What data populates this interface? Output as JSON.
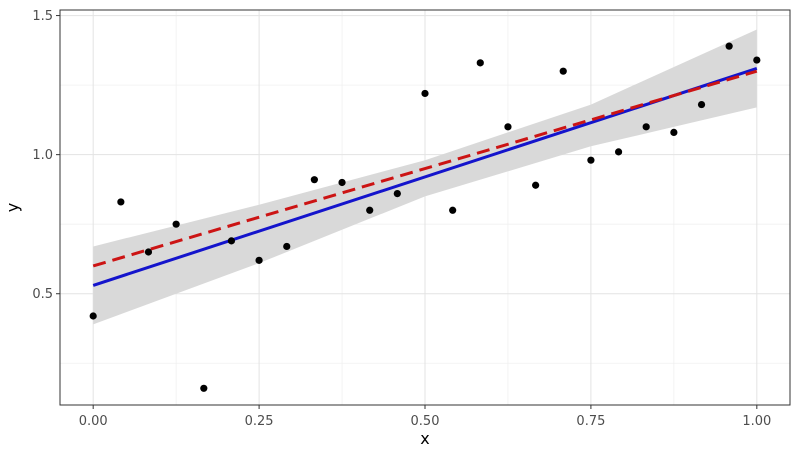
{
  "chart_data": {
    "type": "scatter",
    "title": "",
    "xlabel": "x",
    "ylabel": "y",
    "xlim": [
      -0.05,
      1.05
    ],
    "ylim": [
      0.1,
      1.52
    ],
    "x_ticks": [
      0.0,
      0.25,
      0.5,
      0.75,
      1.0
    ],
    "x_tick_labels": [
      "0.00",
      "0.25",
      "0.50",
      "0.75",
      "1.00"
    ],
    "y_ticks": [
      0.5,
      1.0,
      1.5
    ],
    "y_tick_labels": [
      "0.5",
      "1.0",
      "1.5"
    ],
    "grid": true,
    "points": {
      "x": [
        0.0,
        0.0417,
        0.0833,
        0.125,
        0.1667,
        0.2083,
        0.25,
        0.2917,
        0.3333,
        0.375,
        0.4167,
        0.4583,
        0.5,
        0.5417,
        0.5833,
        0.625,
        0.6667,
        0.7083,
        0.75,
        0.7917,
        0.8333,
        0.875,
        0.9167,
        0.9583,
        1.0
      ],
      "y": [
        0.42,
        0.83,
        0.65,
        0.75,
        0.16,
        0.69,
        0.62,
        0.67,
        0.91,
        0.9,
        0.8,
        0.86,
        1.22,
        0.8,
        1.33,
        1.1,
        0.89,
        1.3,
        0.98,
        1.01,
        1.1,
        1.08,
        1.18,
        1.39,
        1.34
      ],
      "color": "#000000"
    },
    "lines": [
      {
        "style": "solid",
        "color": "#1414cc",
        "x": [
          0.0,
          1.0
        ],
        "y": [
          0.53,
          1.31
        ]
      },
      {
        "style": "dashed",
        "color": "#cc1414",
        "x": [
          0.0,
          1.0
        ],
        "y": [
          0.6,
          1.3
        ]
      }
    ],
    "band": {
      "color": "#d9d9d9",
      "x": [
        0.0,
        0.25,
        0.5,
        0.75,
        1.0
      ],
      "lower": [
        0.39,
        0.61,
        0.85,
        1.03,
        1.17
      ],
      "upper": [
        0.67,
        0.82,
        0.98,
        1.18,
        1.45
      ]
    }
  }
}
